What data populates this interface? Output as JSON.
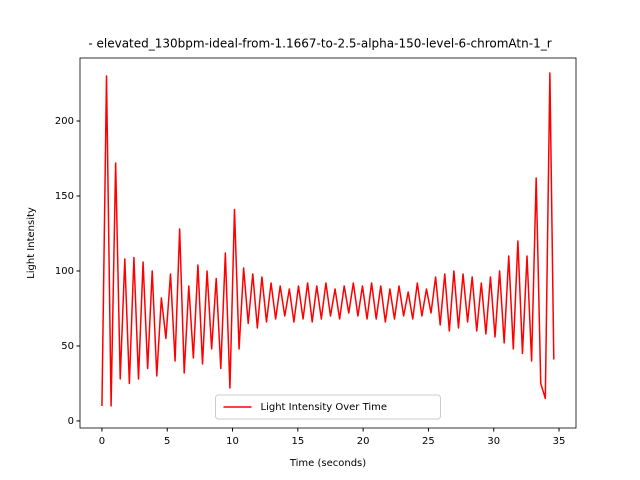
{
  "chart_data": {
    "type": "line",
    "title": "- elevated_130bpm-ideal-from-1.1667-to-2.5-alpha-150-level-6-chromAtn-1_r",
    "xlabel": "Time (seconds)",
    "ylabel": "Light Intensity",
    "x": [
      0,
      0.35,
      0.7,
      1.05,
      1.4,
      1.75,
      2.1,
      2.45,
      2.8,
      3.15,
      3.5,
      3.85,
      4.2,
      4.55,
      4.9,
      5.25,
      5.6,
      5.95,
      6.3,
      6.65,
      7,
      7.35,
      7.7,
      8.05,
      8.4,
      8.75,
      9.1,
      9.45,
      9.8,
      10.15,
      10.5,
      10.85,
      11.2,
      11.55,
      11.9,
      12.25,
      12.6,
      12.95,
      13.3,
      13.65,
      14,
      14.35,
      14.7,
      15.05,
      15.4,
      15.75,
      16.1,
      16.45,
      16.8,
      17.15,
      17.5,
      17.85,
      18.2,
      18.55,
      18.9,
      19.25,
      19.6,
      19.95,
      20.3,
      20.65,
      21,
      21.35,
      21.7,
      22.05,
      22.4,
      22.75,
      23.1,
      23.45,
      23.8,
      24.15,
      24.5,
      24.85,
      25.2,
      25.55,
      25.9,
      26.25,
      26.6,
      26.95,
      27.3,
      27.65,
      28,
      28.35,
      28.7,
      29.05,
      29.4,
      29.75,
      30.1,
      30.45,
      30.8,
      31.15,
      31.5,
      31.85,
      32.2,
      32.55,
      32.9,
      33.25,
      33.6,
      33.95,
      34.3,
      34.6
    ],
    "series": [
      {
        "name": "Light Intensity Over Time",
        "color": "#ff0000",
        "values": [
          10,
          230,
          10,
          172,
          28,
          108,
          25,
          109,
          28,
          106,
          35,
          100,
          30,
          82,
          55,
          98,
          40,
          128,
          32,
          90,
          42,
          104,
          38,
          100,
          48,
          95,
          35,
          112,
          22,
          141,
          48,
          102,
          65,
          98,
          62,
          96,
          66,
          92,
          68,
          90,
          70,
          88,
          66,
          90,
          68,
          92,
          66,
          90,
          68,
          92,
          70,
          88,
          68,
          90,
          72,
          92,
          70,
          90,
          68,
          92,
          68,
          90,
          66,
          88,
          68,
          90,
          70,
          86,
          68,
          92,
          70,
          88,
          72,
          96,
          64,
          98,
          60,
          100,
          62,
          98,
          66,
          96,
          60,
          92,
          58,
          96,
          56,
          100,
          52,
          110,
          48,
          120,
          45,
          110,
          40,
          162,
          25,
          15,
          232,
          41
        ]
      }
    ],
    "xlim": [
      -1.68,
      36.3
    ],
    "ylim": [
      -4.7,
      242
    ],
    "xticks": [
      0,
      5,
      10,
      15,
      20,
      25,
      30,
      35
    ],
    "yticks": [
      0,
      50,
      100,
      150,
      200
    ],
    "legend": "lower center"
  }
}
